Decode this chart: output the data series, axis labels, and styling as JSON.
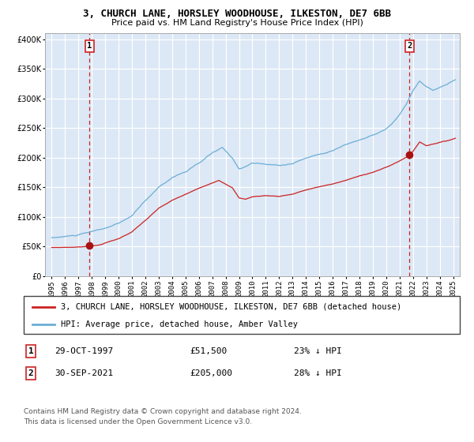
{
  "title1": "3, CHURCH LANE, HORSLEY WOODHOUSE, ILKESTON, DE7 6BB",
  "title2": "Price paid vs. HM Land Registry's House Price Index (HPI)",
  "legend_line1": "3, CHURCH LANE, HORSLEY WOODHOUSE, ILKESTON, DE7 6BB (detached house)",
  "legend_line2": "HPI: Average price, detached house, Amber Valley",
  "point1_label": "1",
  "point1_date": "29-OCT-1997",
  "point1_price": "£51,500",
  "point1_hpi": "23% ↓ HPI",
  "point1_year": 1997.83,
  "point1_value": 51500,
  "point2_label": "2",
  "point2_date": "30-SEP-2021",
  "point2_price": "£205,000",
  "point2_hpi": "28% ↓ HPI",
  "point2_year": 2021.75,
  "point2_value": 205000,
  "hpi_color": "#6baed6",
  "price_color": "#cc2222",
  "point_color": "#aa1111",
  "background_color": "#dce8f5",
  "grid_color": "#ffffff",
  "vline_color": "#cc2222",
  "ylim_min": 0,
  "ylim_max": 410000,
  "footnote1": "Contains HM Land Registry data © Crown copyright and database right 2024.",
  "footnote2": "This data is licensed under the Open Government Licence v3.0."
}
